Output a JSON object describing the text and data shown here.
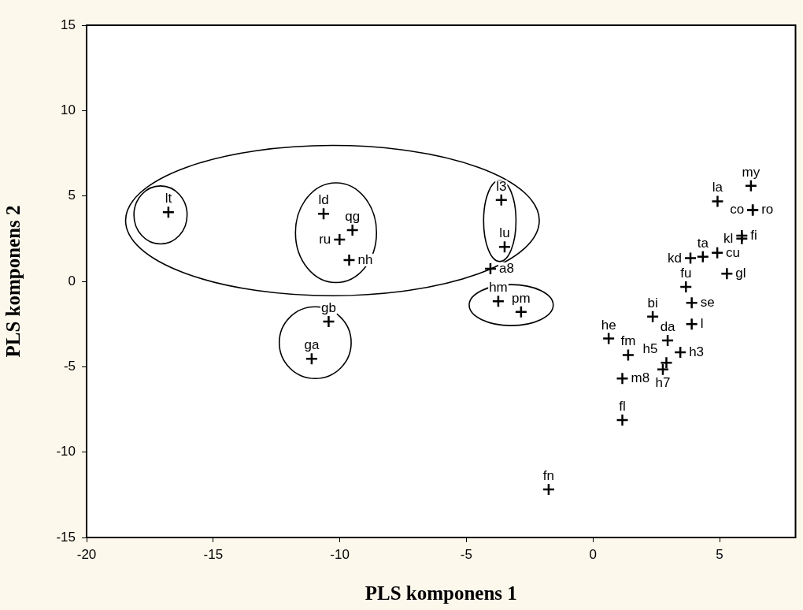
{
  "chart_data": {
    "type": "scatter",
    "xlabel": "PLS komponens 1",
    "ylabel": "PLS komponens 2",
    "xlim": [
      -20,
      8
    ],
    "xticks": [
      -20,
      -15,
      -10,
      -5,
      0,
      5
    ],
    "ylim": [
      -15,
      15
    ],
    "yticks": [
      -15,
      -10,
      -5,
      0,
      5,
      10,
      15
    ],
    "grid": false,
    "legend": false,
    "marker": "cross",
    "series": [
      {
        "color": "#000000",
        "x": [
          -16.77,
          -10.64,
          -9.5,
          -10.01,
          -9.63,
          -3.62,
          -3.49,
          -4.05,
          -3.74,
          -2.84,
          -10.44,
          -11.11,
          -1.75,
          6.24,
          6.31,
          6.31,
          4.92,
          5.88,
          5.88,
          3.85,
          4.34,
          4.91,
          5.29,
          3.67,
          3.9,
          3.9,
          2.36,
          0.62,
          1.39,
          1.16,
          1.16,
          2.95,
          3.45,
          2.9,
          2.76
        ],
        "values": [
          4.05,
          3.96,
          3.0,
          2.45,
          1.25,
          4.77,
          2.02,
          0.74,
          -1.17,
          -1.79,
          -2.35,
          -4.53,
          -12.18,
          5.6,
          4.18,
          4.18,
          4.69,
          2.68,
          2.5,
          1.36,
          1.44,
          1.67,
          0.45,
          -0.32,
          -1.26,
          -2.5,
          -2.07,
          -3.35,
          -4.31,
          -5.69,
          -8.12,
          -3.46,
          -4.15,
          -4.77,
          -5.16
        ]
      }
    ],
    "annotations": [
      {
        "text": "lt",
        "x": -16.77,
        "y": 4.05
      },
      {
        "text": "ld",
        "x": -10.64,
        "y": 3.96
      },
      {
        "text": "qg",
        "x": -9.5,
        "y": 3.0
      },
      {
        "text": "ru",
        "x": -10.01,
        "y": 2.45
      },
      {
        "text": "nh",
        "x": -9.63,
        "y": 1.25
      },
      {
        "text": "l3",
        "x": -3.62,
        "y": 4.77
      },
      {
        "text": "lu",
        "x": -3.49,
        "y": 2.02
      },
      {
        "text": "a8",
        "x": -4.05,
        "y": 0.74
      },
      {
        "text": "hm",
        "x": -3.74,
        "y": -1.17
      },
      {
        "text": "pm",
        "x": -2.84,
        "y": -1.79
      },
      {
        "text": "gb",
        "x": -10.44,
        "y": -2.35
      },
      {
        "text": "ga",
        "x": -11.11,
        "y": -4.53
      },
      {
        "text": "fn",
        "x": -1.75,
        "y": -12.18
      },
      {
        "text": "my",
        "x": 6.24,
        "y": 5.6
      },
      {
        "text": "ro",
        "x": 6.31,
        "y": 4.18
      },
      {
        "text": "co",
        "x": 6.31,
        "y": 4.18
      },
      {
        "text": "la",
        "x": 4.92,
        "y": 4.69
      },
      {
        "text": "fi",
        "x": 5.88,
        "y": 2.68
      },
      {
        "text": "kl",
        "x": 5.88,
        "y": 2.5
      },
      {
        "text": "kd",
        "x": 3.85,
        "y": 1.36
      },
      {
        "text": "ta",
        "x": 4.34,
        "y": 1.44
      },
      {
        "text": "cu",
        "x": 4.91,
        "y": 1.67
      },
      {
        "text": "gl",
        "x": 5.29,
        "y": 0.45
      },
      {
        "text": "fu",
        "x": 3.67,
        "y": -0.32
      },
      {
        "text": "se",
        "x": 3.9,
        "y": -1.26
      },
      {
        "text": "l",
        "x": 3.9,
        "y": -2.5
      },
      {
        "text": "bi",
        "x": 2.36,
        "y": -2.07
      },
      {
        "text": "he",
        "x": 0.62,
        "y": -3.35
      },
      {
        "text": "fm",
        "x": 1.39,
        "y": -4.31
      },
      {
        "text": "m8",
        "x": 1.16,
        "y": -5.69
      },
      {
        "text": "fl",
        "x": 1.16,
        "y": -8.12
      },
      {
        "text": "da",
        "x": 2.95,
        "y": -3.46
      },
      {
        "text": "h3",
        "x": 3.45,
        "y": -4.15
      },
      {
        "text": "h5",
        "x": 2.9,
        "y": -4.77
      },
      {
        "text": "h7",
        "x": 2.76,
        "y": -5.16
      }
    ]
  }
}
